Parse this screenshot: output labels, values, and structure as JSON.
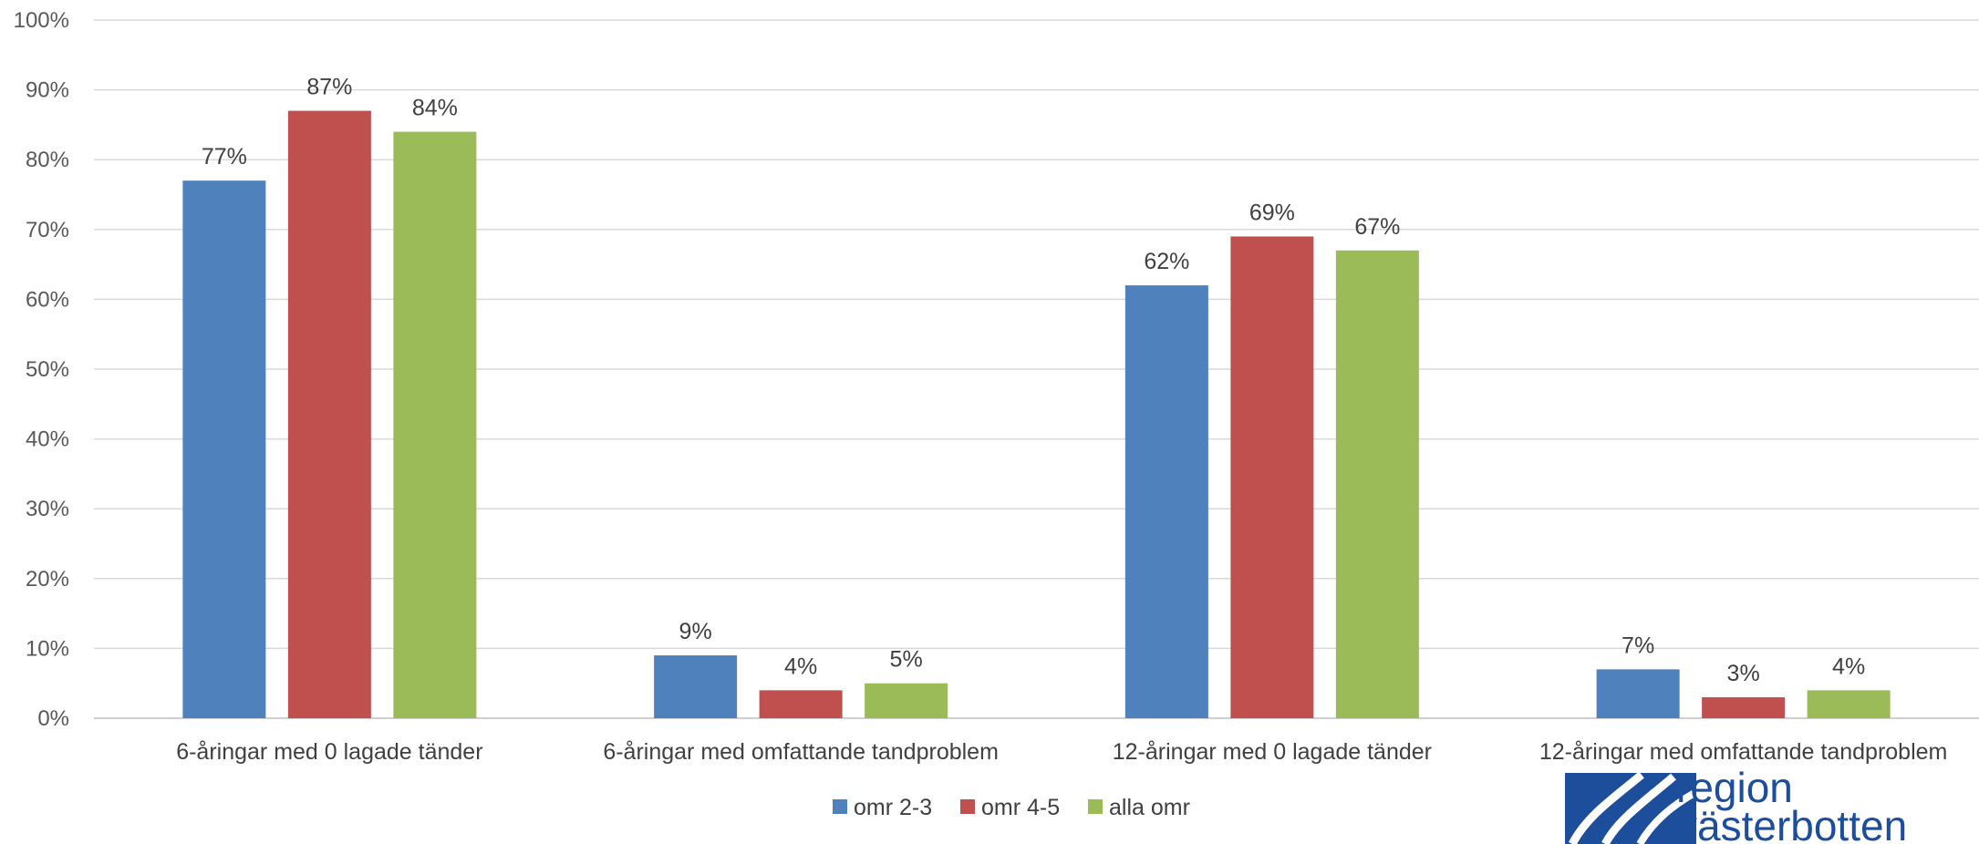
{
  "chart_data": {
    "type": "bar",
    "categories": [
      "6-åringar med 0 lagade tänder",
      "6-åringar med omfattande tandproblem",
      "12-åringar med 0 lagade tänder",
      "12-åringar med omfattande tandproblem"
    ],
    "series": [
      {
        "name": "omr 2-3",
        "color": "#4f81bd",
        "values": [
          77,
          9,
          62,
          7
        ]
      },
      {
        "name": "omr 4-5",
        "color": "#c0504d",
        "values": [
          87,
          4,
          69,
          3
        ]
      },
      {
        "name": "alla omr",
        "color": "#9bbb59",
        "values": [
          84,
          5,
          67,
          4
        ]
      }
    ],
    "title": "",
    "xlabel": "",
    "ylabel": "",
    "ylim": [
      0,
      100
    ],
    "yticks": [
      "0%",
      "10%",
      "20%",
      "30%",
      "40%",
      "50%",
      "60%",
      "70%",
      "80%",
      "90%",
      "100%"
    ],
    "value_suffix": "%",
    "grid": true,
    "legend_position": "bottom"
  },
  "logo": {
    "line1": "region",
    "line2": "västerbotten",
    "color": "#1d4e9b"
  }
}
